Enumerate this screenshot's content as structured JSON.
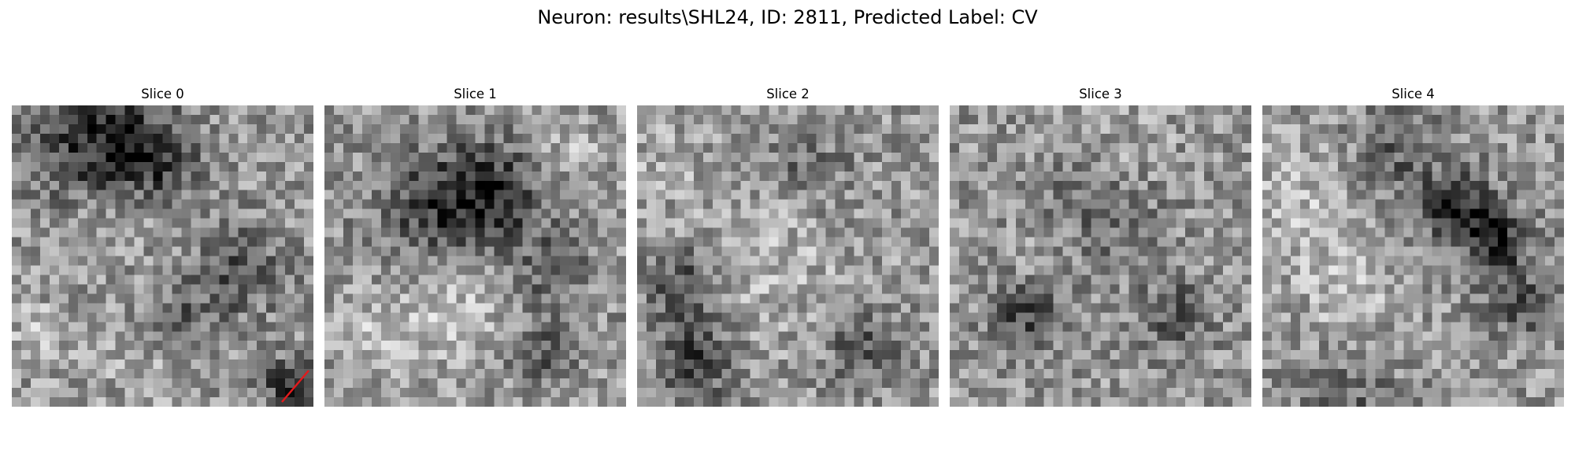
{
  "figure": {
    "title": "Neuron: results\\SHL24, ID: 2811, Predicted Label: CV"
  },
  "slices": [
    {
      "title": "Slice 0",
      "dark_regions": [
        [
          0.28,
          0.12,
          0.2,
          1.0
        ],
        [
          0.48,
          0.18,
          0.15,
          0.7
        ],
        [
          0.55,
          0.72,
          0.12,
          0.5
        ],
        [
          0.75,
          0.55,
          0.15,
          0.6
        ],
        [
          0.92,
          0.93,
          0.09,
          0.9
        ]
      ],
      "light_regions": [
        [
          0.35,
          0.35,
          0.15,
          0.5
        ],
        [
          0.08,
          0.75,
          0.12,
          0.5
        ],
        [
          0.45,
          0.85,
          0.15,
          0.4
        ]
      ],
      "marker": "red-diagonal-line"
    },
    {
      "title": "Slice 1",
      "dark_regions": [
        [
          0.55,
          0.3,
          0.18,
          0.9
        ],
        [
          0.35,
          0.35,
          0.2,
          0.6
        ],
        [
          0.75,
          0.55,
          0.12,
          0.5
        ],
        [
          0.72,
          0.82,
          0.1,
          0.6
        ]
      ],
      "light_regions": [
        [
          0.45,
          0.65,
          0.18,
          0.7
        ],
        [
          0.2,
          0.75,
          0.15,
          0.6
        ],
        [
          0.8,
          0.15,
          0.12,
          0.5
        ]
      ],
      "marker": null
    },
    {
      "title": "Slice 2",
      "dark_regions": [
        [
          0.15,
          0.6,
          0.12,
          0.7
        ],
        [
          0.2,
          0.85,
          0.12,
          0.8
        ],
        [
          0.75,
          0.8,
          0.12,
          0.6
        ],
        [
          0.55,
          0.2,
          0.15,
          0.4
        ]
      ],
      "light_regions": [
        [
          0.45,
          0.5,
          0.25,
          0.5
        ],
        [
          0.08,
          0.2,
          0.12,
          0.4
        ]
      ],
      "marker": null
    },
    {
      "title": "Slice 3",
      "dark_regions": [
        [
          0.25,
          0.7,
          0.12,
          0.7
        ],
        [
          0.75,
          0.7,
          0.12,
          0.6
        ],
        [
          0.5,
          0.35,
          0.2,
          0.4
        ]
      ],
      "light_regions": [
        [
          0.6,
          0.15,
          0.12,
          0.4
        ],
        [
          0.35,
          0.5,
          0.12,
          0.3
        ]
      ],
      "marker": null
    },
    {
      "title": "Slice 4",
      "dark_regions": [
        [
          0.65,
          0.35,
          0.12,
          1.0
        ],
        [
          0.78,
          0.45,
          0.1,
          0.9
        ],
        [
          0.45,
          0.15,
          0.15,
          0.5
        ],
        [
          0.85,
          0.65,
          0.12,
          0.6
        ],
        [
          0.3,
          0.95,
          0.15,
          0.4
        ]
      ],
      "light_regions": [
        [
          0.15,
          0.35,
          0.2,
          0.6
        ],
        [
          0.3,
          0.65,
          0.18,
          0.5
        ]
      ],
      "marker": null
    }
  ],
  "colors": {
    "marker": "#e31a1c"
  }
}
